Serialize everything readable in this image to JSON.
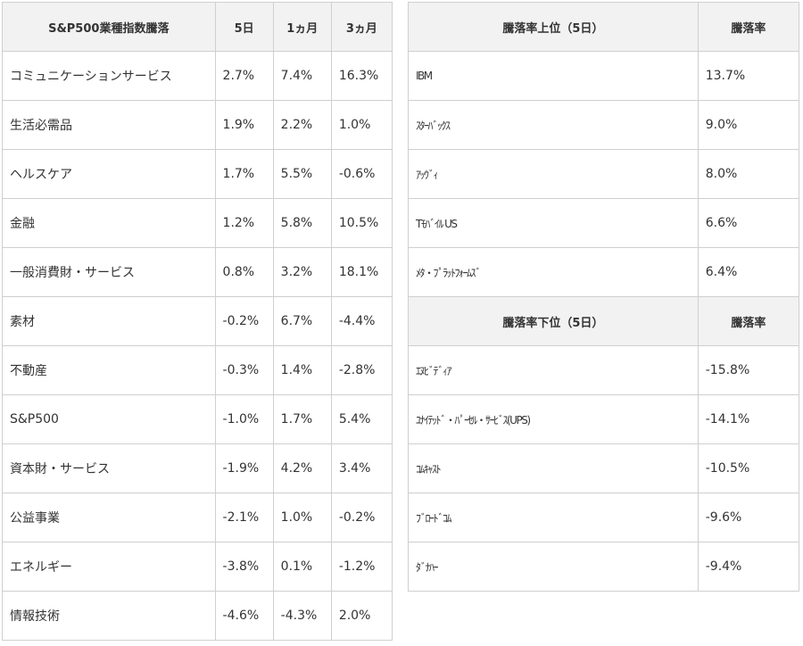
{
  "sector_table": {
    "headers": [
      "S&P500業種指数騰落",
      "5日",
      "1ヵ月",
      "3ヵ月"
    ],
    "rows": [
      [
        "コミュニケーションサービス",
        "2.7%",
        "7.4%",
        "16.3%"
      ],
      [
        "生活必需品",
        "1.9%",
        "2.2%",
        "1.0%"
      ],
      [
        "ヘルスケア",
        "1.7%",
        "5.5%",
        "-0.6%"
      ],
      [
        "金融",
        "1.2%",
        "5.8%",
        "10.5%"
      ],
      [
        "一般消費財・サービス",
        "0.8%",
        "3.2%",
        "18.1%"
      ],
      [
        "素材",
        "-0.2%",
        "6.7%",
        "-4.4%"
      ],
      [
        "不動産",
        "-0.3%",
        "1.4%",
        "-2.8%"
      ],
      [
        "S&P500",
        "-1.0%",
        "1.7%",
        "5.4%"
      ],
      [
        "資本財・サービス",
        "-1.9%",
        "4.2%",
        "3.4%"
      ],
      [
        "公益事業",
        "-2.1%",
        "1.0%",
        "-0.2%"
      ],
      [
        "エネルギー",
        "-3.8%",
        "0.1%",
        "-1.2%"
      ],
      [
        "情報技術",
        "-4.6%",
        "-4.3%",
        "2.0%"
      ]
    ]
  },
  "top_table": {
    "headers": [
      "騰落率上位（5日）",
      "騰落率"
    ],
    "rows": [
      [
        "IBM",
        "13.7%"
      ],
      [
        "ｽﾀｰﾊﾞｯｸｽ",
        "9.0%"
      ],
      [
        "ｱｯｳﾞｨ",
        "8.0%"
      ],
      [
        "Tﾓﾊﾞｲﾙ US",
        "6.6%"
      ],
      [
        "ﾒﾀ・ﾌﾟﾗｯﾄﾌｫｰﾑｽﾞ",
        "6.4%"
      ]
    ]
  },
  "bottom_table": {
    "headers": [
      "騰落率下位（5日）",
      "騰落率"
    ],
    "rows": [
      [
        "ｴﾇﾋﾞﾃﾞｨｱ",
        "-15.8%"
      ],
      [
        "ﾕﾅｲﾃｯﾄﾞ・ﾊﾟｰｾﾙ・ｻｰﾋﾞｽ(UPS)",
        "-14.1%"
      ],
      [
        "ｺﾑｷｬｽﾄ",
        "-10.5%"
      ],
      [
        "ﾌﾞﾛｰﾄﾞｺﾑ",
        "-9.6%"
      ],
      [
        "ﾀﾞﾅﾊｰ",
        "-9.4%"
      ]
    ]
  }
}
